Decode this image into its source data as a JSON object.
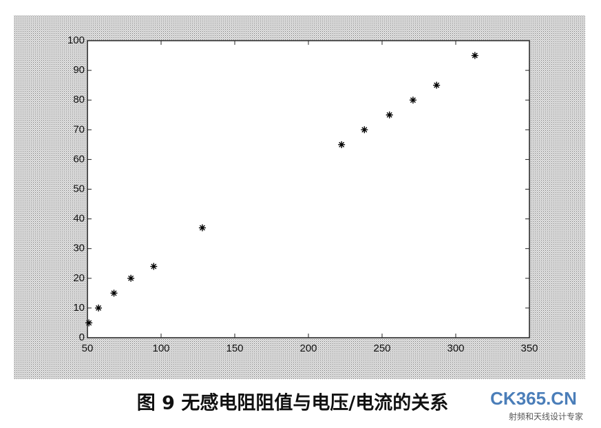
{
  "chart_data": {
    "type": "scatter",
    "caption": "图 9   无感电阻阻值与电压/电流的关系",
    "watermark": "CK365.CN",
    "watermark_subtitle": "射频和天线设计专家",
    "x": [
      51,
      57.5,
      68,
      79.5,
      95,
      128,
      222.5,
      238,
      255,
      271,
      287,
      313
    ],
    "values": [
      5,
      10,
      15,
      20,
      24,
      37,
      65,
      70,
      75,
      80,
      85,
      95
    ],
    "color": "#000000",
    "xlim": [
      50,
      350
    ],
    "xticks": [
      50,
      100,
      150,
      200,
      250,
      300,
      350
    ],
    "ylim": [
      0,
      100
    ],
    "yticks": [
      0,
      10,
      20,
      30,
      40,
      50,
      60,
      70,
      80,
      90,
      100
    ],
    "grid": false
  }
}
